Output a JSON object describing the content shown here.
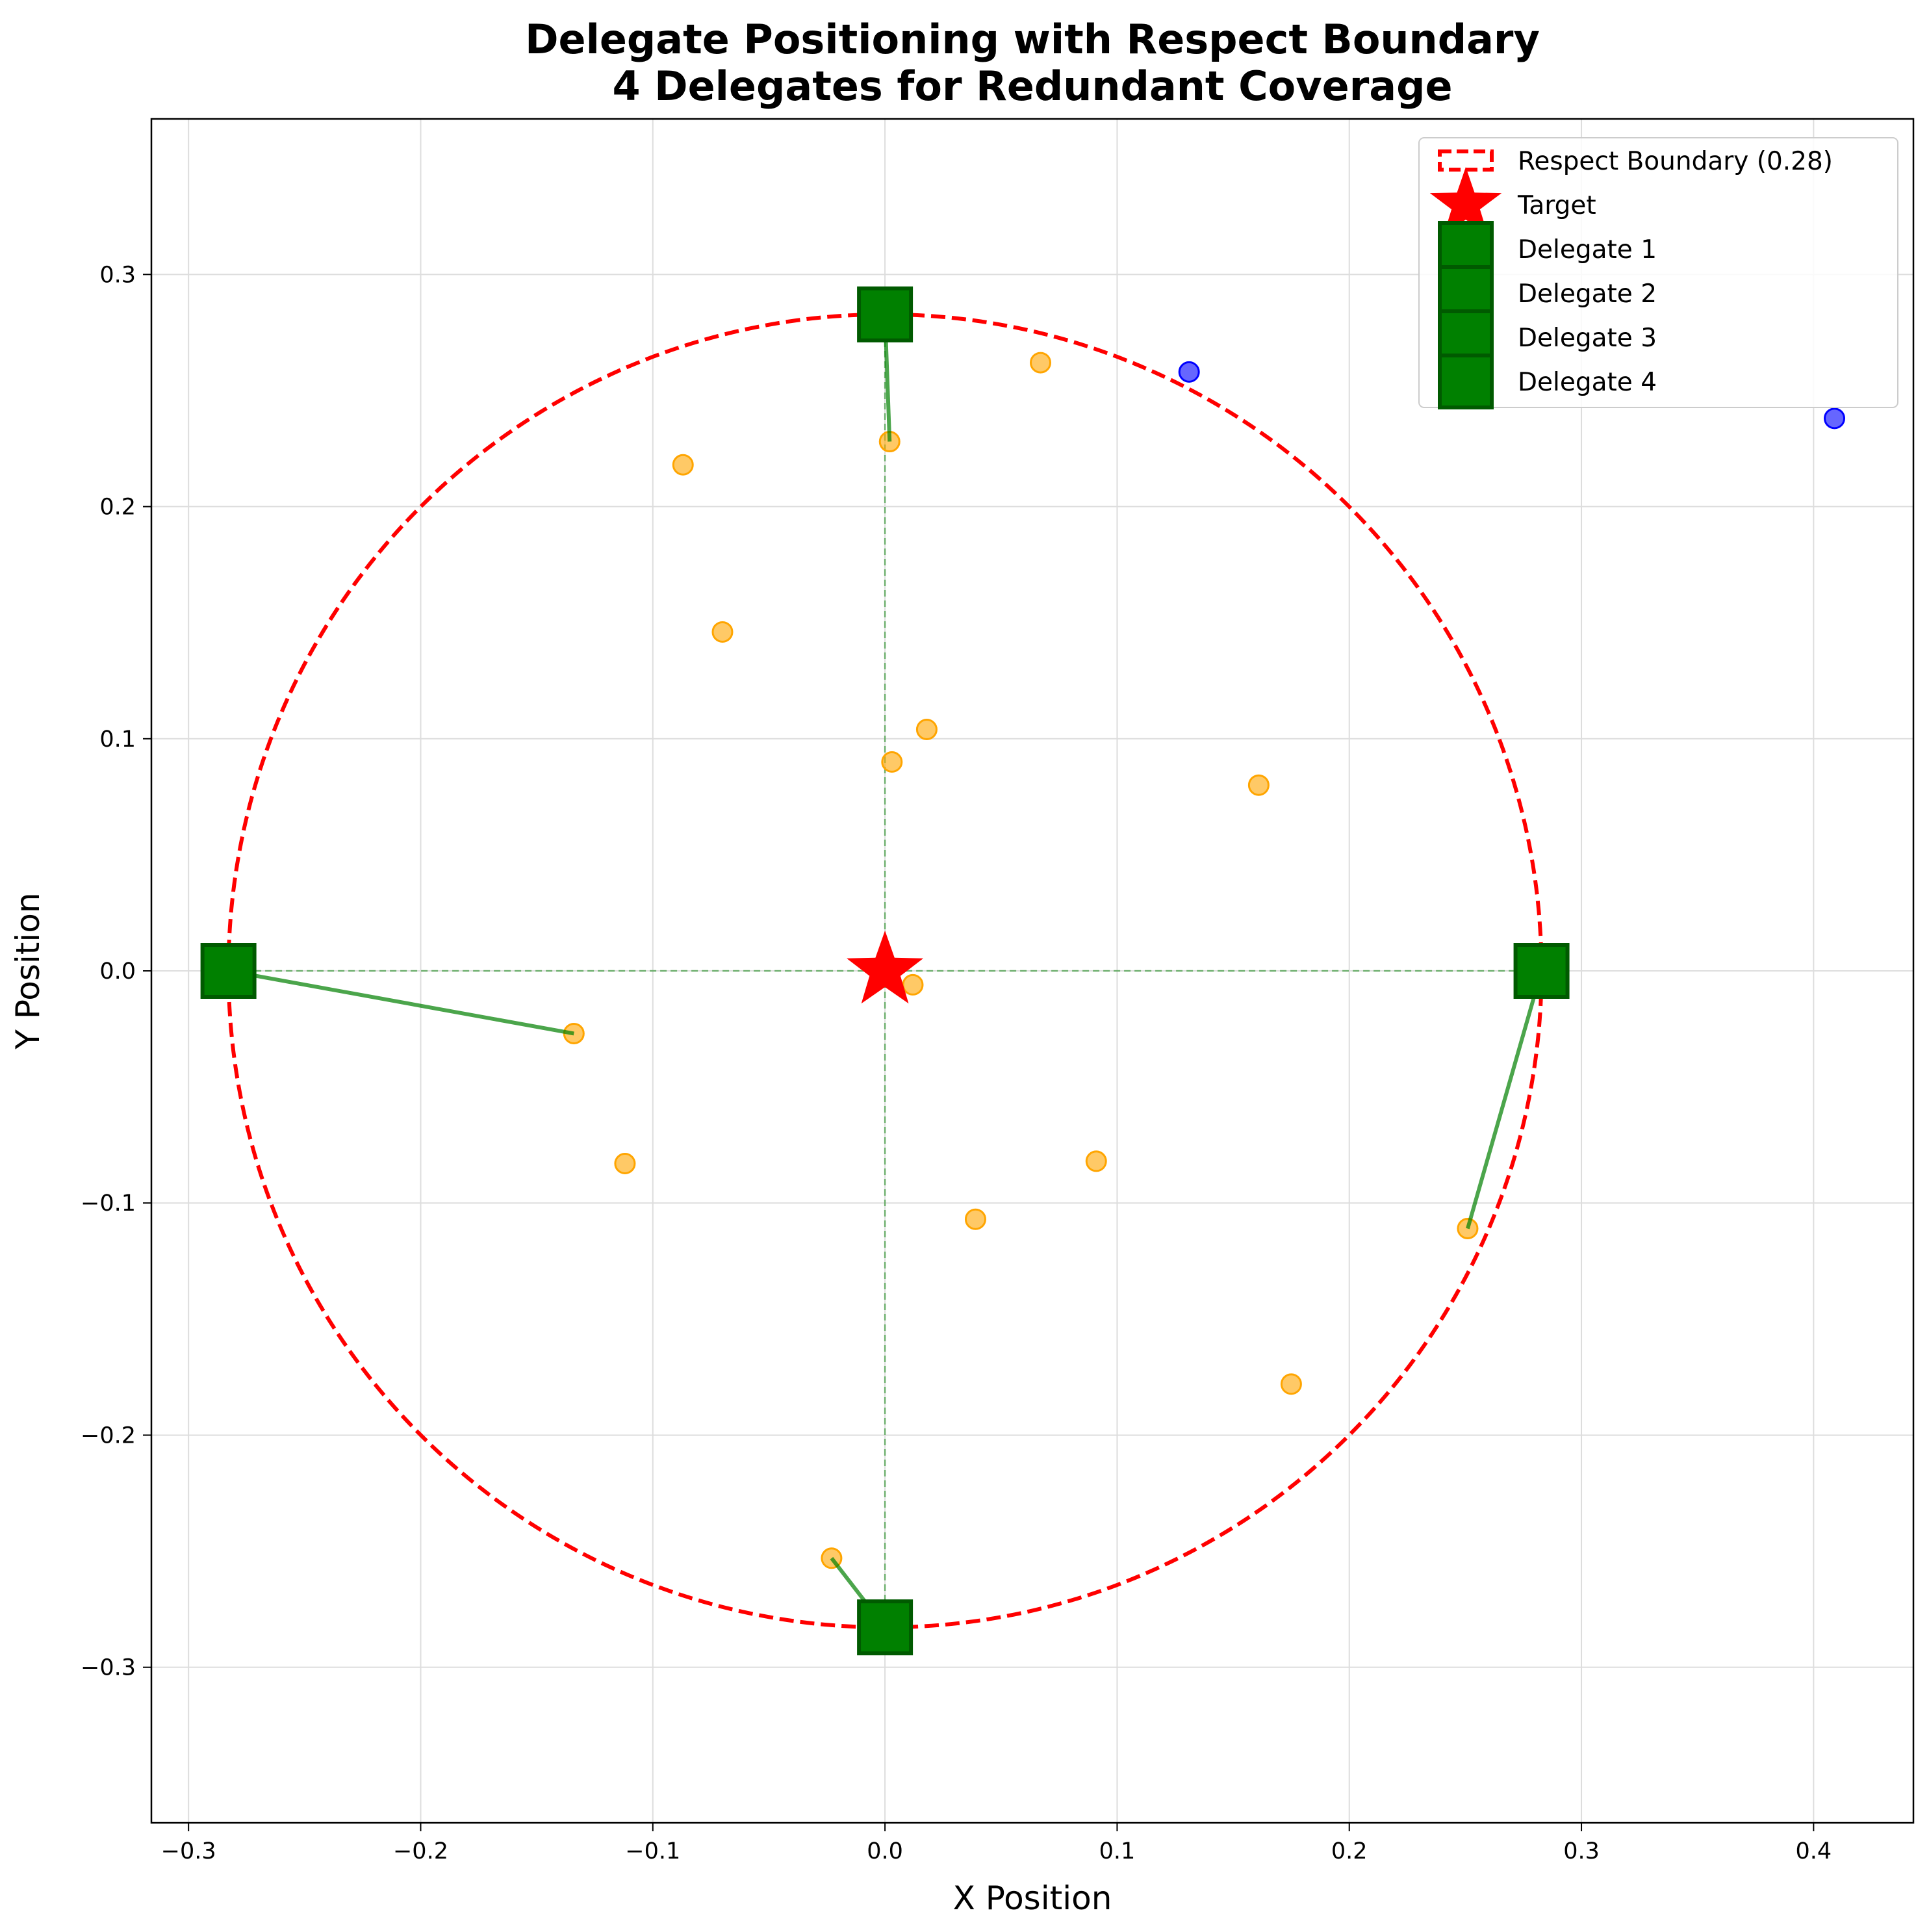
{
  "chart_data": {
    "type": "scatter",
    "title": "Delegate Positioning with Respect Boundary\n4 Delegates for Redundant Coverage",
    "xlabel": "X Position",
    "ylabel": "Y Position",
    "xlim": [
      -0.316,
      0.443
    ],
    "ylim": [
      -0.367,
      0.367
    ],
    "x_ticks": [
      -0.3,
      -0.2,
      -0.1,
      0.0,
      0.1,
      0.2,
      0.3,
      0.4
    ],
    "y_ticks": [
      -0.3,
      -0.2,
      -0.1,
      0.0,
      0.1,
      0.2,
      0.3
    ],
    "x_tick_labels": [
      "−0.3",
      "−0.2",
      "−0.1",
      "0.0",
      "0.1",
      "0.2",
      "0.3",
      "0.4"
    ],
    "y_tick_labels": [
      "−0.3",
      "−0.2",
      "−0.1",
      "0.0",
      "0.1",
      "0.2",
      "0.3"
    ],
    "grid": true,
    "legend_position": "top-right",
    "boundary": {
      "label": "Respect Boundary (0.28)",
      "radius": 0.2828,
      "center": [
        0,
        0
      ],
      "color": "#ff0000"
    },
    "target": {
      "label": "Target",
      "x": 0.0,
      "y": 0.0,
      "color": "#ff0000"
    },
    "delegates": [
      {
        "label": "Delegate 1",
        "x": 0.0,
        "y": 0.2828,
        "nearest": [
          0.002,
          0.228
        ]
      },
      {
        "label": "Delegate 2",
        "x": 0.2828,
        "y": 0.0,
        "nearest": [
          0.251,
          -0.111
        ]
      },
      {
        "label": "Delegate 3",
        "x": 0.0,
        "y": -0.2828,
        "nearest": [
          -0.023,
          -0.253
        ]
      },
      {
        "label": "Delegate 4",
        "x": -0.2828,
        "y": 0.0,
        "nearest": [
          -0.134,
          -0.027
        ]
      }
    ],
    "delegate_color": "#008000",
    "inside_points": {
      "color": "#ffa500",
      "points": [
        [
          0.067,
          0.262
        ],
        [
          -0.087,
          0.218
        ],
        [
          0.002,
          0.228
        ],
        [
          -0.07,
          0.146
        ],
        [
          0.018,
          0.104
        ],
        [
          0.003,
          0.09
        ],
        [
          0.161,
          0.08
        ],
        [
          0.012,
          -0.006
        ],
        [
          -0.134,
          -0.027
        ],
        [
          -0.112,
          -0.083
        ],
        [
          0.091,
          -0.082
        ],
        [
          0.039,
          -0.107
        ],
        [
          0.251,
          -0.111
        ],
        [
          0.175,
          -0.178
        ],
        [
          -0.023,
          -0.253
        ]
      ]
    },
    "outside_points": {
      "color": "#0000ff",
      "points": [
        [
          0.131,
          0.258
        ],
        [
          0.409,
          0.238
        ]
      ]
    }
  }
}
